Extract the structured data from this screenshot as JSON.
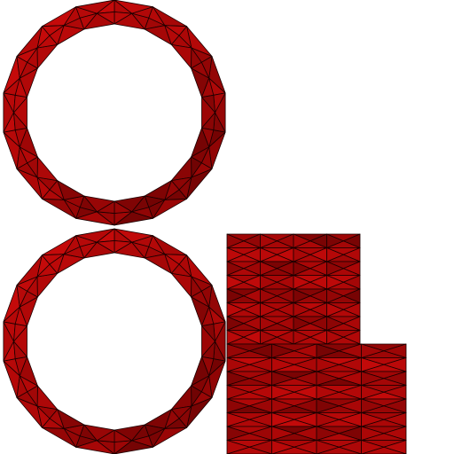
{
  "scene": {
    "background": "#ffffff",
    "colors": {
      "bright": "#c40a0a",
      "mid": "#a80707",
      "dark": "#6e0303",
      "wire": "#1a0000"
    },
    "objects": [
      {
        "kind": "ring",
        "name": "upper-ring"
      },
      {
        "kind": "ring",
        "name": "lower-ring"
      },
      {
        "kind": "slab-stack",
        "name": "upper-slab-stack"
      },
      {
        "kind": "slab-stack",
        "name": "lower-slab-stack"
      }
    ]
  }
}
